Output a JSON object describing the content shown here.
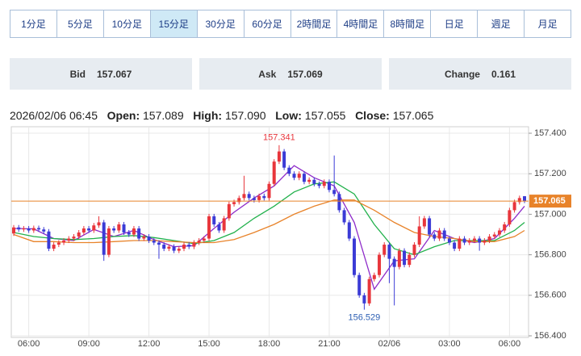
{
  "tabs": [
    "1分足",
    "5分足",
    "10分足",
    "15分足",
    "30分足",
    "60分足",
    "2時間足",
    "4時間足",
    "8時間足",
    "日足",
    "週足",
    "月足"
  ],
  "selected_tab": 3,
  "quote": {
    "bid_label": "Bid",
    "bid": "157.067",
    "ask_label": "Ask",
    "ask": "157.069",
    "change_label": "Change",
    "change": "0.161"
  },
  "ohlc": {
    "time": "2026/02/06 06:45",
    "open_label": "Open:",
    "open": "157.089",
    "high_label": "High:",
    "high": "157.090",
    "low_label": "Low:",
    "low": "157.055",
    "close_label": "Close:",
    "close": "157.065"
  },
  "chart_data": {
    "type": "candlestick",
    "categories": [
      null,
      null,
      null,
      "06:00",
      null,
      null,
      null,
      null,
      null,
      null,
      null,
      null,
      null,
      null,
      null,
      "09:00",
      null,
      null,
      null,
      null,
      null,
      null,
      null,
      null,
      null,
      null,
      null,
      "12:00",
      null,
      null,
      null,
      null,
      null,
      null,
      null,
      null,
      null,
      null,
      null,
      "15:00",
      null,
      null,
      null,
      null,
      null,
      null,
      null,
      null,
      null,
      null,
      null,
      "18:00",
      null,
      null,
      null,
      null,
      null,
      null,
      null,
      null,
      null,
      null,
      null,
      "21:00",
      null,
      null,
      null,
      null,
      null,
      null,
      null,
      null,
      null,
      null,
      null,
      "02/06",
      null,
      null,
      null,
      null,
      null,
      null,
      null,
      null,
      null,
      null,
      null,
      "03:00",
      null,
      null,
      null,
      null,
      null,
      null,
      null,
      null,
      null,
      null,
      null,
      "06:00",
      null,
      null,
      null
    ],
    "open": [
      156.905,
      156.935,
      156.925,
      156.93,
      156.92,
      156.932,
      156.925,
      156.915,
      156.83,
      156.85,
      156.86,
      156.87,
      156.88,
      156.89,
      156.91,
      156.93,
      156.92,
      156.945,
      156.96,
      156.8,
      156.93,
      156.92,
      156.95,
      156.91,
      156.9,
      156.93,
      156.88,
      156.89,
      156.87,
      156.86,
      156.85,
      156.83,
      156.84,
      156.82,
      156.83,
      156.85,
      156.84,
      156.86,
      156.87,
      156.88,
      156.99,
      156.95,
      156.92,
      156.98,
      157.05,
      157.06,
      157.08,
      157.1,
      157.08,
      157.07,
      157.09,
      157.08,
      157.15,
      157.26,
      157.31,
      157.23,
      157.2,
      157.18,
      157.2,
      157.16,
      157.17,
      157.15,
      157.14,
      157.16,
      157.12,
      157.1,
      157.02,
      156.96,
      156.88,
      156.7,
      156.6,
      156.56,
      156.68,
      156.7,
      156.8,
      156.85,
      156.78,
      156.74,
      156.82,
      156.75,
      156.8,
      156.85,
      156.94,
      156.98,
      156.9,
      156.88,
      156.92,
      156.88,
      156.86,
      156.83,
      156.88,
      156.86,
      156.87,
      156.88,
      156.86,
      156.87,
      156.89,
      156.9,
      156.92,
      156.95,
      157.02,
      157.06,
      157.089
    ],
    "high": [
      156.947,
      156.947,
      156.942,
      156.942,
      156.944,
      156.944,
      156.937,
      156.927,
      156.862,
      156.872,
      156.882,
      156.892,
      156.902,
      156.922,
      156.942,
      156.942,
      156.957,
      156.99,
      156.972,
      156.942,
      156.942,
      156.962,
      156.962,
      156.922,
      156.942,
      156.942,
      156.902,
      156.902,
      156.882,
      156.872,
      156.862,
      156.852,
      156.852,
      156.842,
      156.862,
      156.862,
      156.872,
      156.882,
      156.892,
      157.002,
      157.002,
      156.962,
      156.992,
      157.062,
      157.072,
      157.092,
      157.19,
      157.112,
      157.092,
      157.102,
      157.102,
      157.162,
      157.272,
      157.341,
      157.322,
      157.242,
      157.212,
      157.212,
      157.212,
      157.182,
      157.182,
      157.162,
      157.172,
      157.172,
      157.29,
      157.112,
      157.032,
      156.972,
      156.892,
      156.712,
      156.612,
      156.692,
      156.712,
      156.812,
      156.862,
      156.862,
      156.792,
      156.832,
      156.832,
      156.812,
      156.862,
      156.99,
      156.992,
      156.992,
      156.912,
      156.932,
      156.932,
      156.892,
      156.872,
      156.892,
      156.892,
      156.882,
      156.892,
      156.892,
      156.882,
      156.902,
      156.912,
      156.932,
      156.962,
      157.032,
      157.072,
      157.092,
      157.09
    ],
    "low": [
      156.893,
      156.913,
      156.913,
      156.908,
      156.908,
      156.913,
      156.903,
      156.818,
      156.818,
      156.838,
      156.848,
      156.858,
      156.868,
      156.878,
      156.898,
      156.908,
      156.908,
      156.933,
      156.77,
      156.788,
      156.908,
      156.908,
      156.898,
      156.888,
      156.888,
      156.868,
      156.868,
      156.858,
      156.848,
      156.78,
      156.818,
      156.818,
      156.808,
      156.808,
      156.818,
      156.828,
      156.828,
      156.848,
      156.858,
      156.868,
      156.938,
      156.908,
      156.908,
      156.968,
      157.038,
      157.048,
      157.068,
      157.068,
      157.058,
      157.058,
      157.068,
      157.068,
      157.138,
      157.248,
      157.218,
      157.188,
      157.168,
      157.168,
      157.148,
      157.148,
      157.138,
      157.128,
      157.128,
      157.108,
      157.088,
      157.008,
      156.948,
      156.868,
      156.688,
      156.588,
      156.529,
      156.548,
      156.668,
      156.688,
      156.788,
      156.66,
      156.55,
      156.728,
      156.738,
      156.738,
      156.788,
      156.838,
      156.928,
      156.888,
      156.868,
      156.868,
      156.868,
      156.848,
      156.818,
      156.818,
      156.848,
      156.848,
      156.858,
      156.82,
      156.848,
      156.858,
      156.878,
      156.888,
      156.908,
      156.938,
      157.008,
      157.048,
      157.055
    ],
    "close": [
      156.935,
      156.925,
      156.93,
      156.92,
      156.932,
      156.925,
      156.915,
      156.83,
      156.85,
      156.86,
      156.87,
      156.88,
      156.89,
      156.91,
      156.93,
      156.92,
      156.945,
      156.96,
      156.8,
      156.93,
      156.92,
      156.95,
      156.91,
      156.9,
      156.93,
      156.88,
      156.89,
      156.87,
      156.86,
      156.85,
      156.83,
      156.84,
      156.82,
      156.83,
      156.85,
      156.84,
      156.86,
      156.87,
      156.88,
      156.99,
      156.95,
      156.92,
      156.98,
      157.05,
      157.06,
      157.08,
      157.1,
      157.08,
      157.07,
      157.09,
      157.08,
      157.15,
      157.26,
      157.31,
      157.23,
      157.2,
      157.18,
      157.2,
      157.16,
      157.17,
      157.15,
      157.14,
      157.16,
      157.12,
      157.1,
      157.02,
      156.96,
      156.88,
      156.7,
      156.6,
      156.56,
      156.68,
      156.7,
      156.8,
      156.85,
      156.78,
      156.74,
      156.82,
      156.75,
      156.8,
      156.85,
      156.94,
      156.98,
      156.9,
      156.88,
      156.92,
      156.88,
      156.86,
      156.83,
      156.88,
      156.86,
      156.87,
      156.88,
      156.86,
      156.87,
      156.89,
      156.9,
      156.92,
      156.95,
      157.02,
      157.06,
      157.08,
      157.065
    ],
    "up_color": "#e8363c",
    "down_color": "#3b3bd6",
    "series": [
      {
        "color": "#8e2bc9",
        "x": [
          0,
          4,
          8,
          12,
          16,
          20,
          24,
          28,
          32,
          36,
          40,
          44,
          48,
          52,
          56,
          60,
          64,
          68,
          72,
          76,
          80,
          84,
          88,
          92,
          96,
          100,
          102
        ],
        "values": [
          156.93,
          156.928,
          156.88,
          156.87,
          156.925,
          156.89,
          156.92,
          156.875,
          156.84,
          156.845,
          156.93,
          157.01,
          157.08,
          157.14,
          157.24,
          157.18,
          157.14,
          156.96,
          156.63,
          156.77,
          156.78,
          156.92,
          156.88,
          156.86,
          156.88,
          156.98,
          157.04
        ]
      },
      {
        "color": "#22b14c",
        "x": [
          0,
          4,
          8,
          12,
          16,
          20,
          24,
          28,
          32,
          36,
          40,
          44,
          48,
          52,
          56,
          60,
          64,
          68,
          72,
          76,
          80,
          84,
          88,
          92,
          96,
          100,
          102
        ],
        "values": [
          156.91,
          156.89,
          156.88,
          156.875,
          156.88,
          156.89,
          156.895,
          156.885,
          156.87,
          156.855,
          156.87,
          156.91,
          156.98,
          157.04,
          157.11,
          157.15,
          157.16,
          157.1,
          156.95,
          156.83,
          156.8,
          156.84,
          156.87,
          156.87,
          156.87,
          156.92,
          156.96
        ]
      },
      {
        "color": "#e8832a",
        "x": [
          0,
          4,
          8,
          12,
          16,
          20,
          24,
          28,
          32,
          36,
          40,
          44,
          48,
          52,
          56,
          60,
          64,
          68,
          72,
          76,
          80,
          84,
          88,
          92,
          96,
          100,
          102
        ],
        "values": [
          156.9,
          156.865,
          156.865,
          156.86,
          156.86,
          156.865,
          156.87,
          156.87,
          156.865,
          156.86,
          156.86,
          156.875,
          156.91,
          156.95,
          157.0,
          157.04,
          157.07,
          157.07,
          157.02,
          156.96,
          156.91,
          156.89,
          156.88,
          156.865,
          156.865,
          156.89,
          156.92
        ]
      }
    ],
    "last_price": {
      "value": 157.065,
      "label": "157.065"
    },
    "last_price_color": "#e8832a",
    "annotations": [
      {
        "text": "157.341",
        "x": 53,
        "y": 157.341,
        "color": "#e8363c"
      },
      {
        "text": "156.529",
        "x": 70,
        "y": 156.529,
        "color": "#2d5fb3"
      }
    ],
    "ylim": [
      156.392,
      157.432
    ],
    "yticks": [
      {
        "value": 156.4,
        "label": "156.400"
      },
      {
        "value": 156.6,
        "label": "156.600"
      },
      {
        "value": 156.8,
        "label": "156.800"
      },
      {
        "value": 157.0,
        "label": "157.000"
      },
      {
        "value": 157.2,
        "label": "157.200"
      },
      {
        "value": 157.4,
        "label": "157.400"
      }
    ],
    "grid": true
  }
}
